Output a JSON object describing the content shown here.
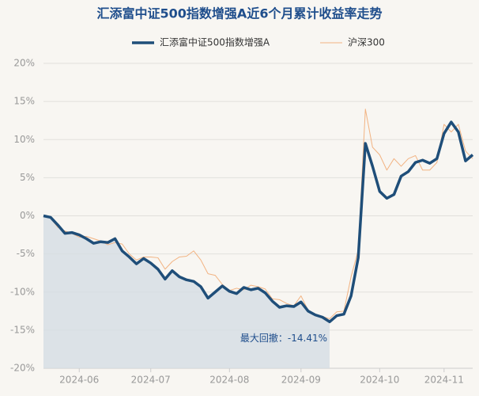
{
  "chart_data": {
    "type": "line",
    "title": "汇添富中证500指数增强A近6个月累计收益率走势",
    "annotation": "最大回撤：-14.41%",
    "categories": [
      null,
      null,
      null,
      null,
      null,
      "2024-06",
      null,
      null,
      null,
      null,
      null,
      null,
      null,
      null,
      null,
      "2024-07",
      null,
      null,
      null,
      null,
      null,
      null,
      null,
      null,
      null,
      null,
      "2024-08",
      null,
      null,
      null,
      null,
      null,
      null,
      null,
      null,
      null,
      "2024-09",
      null,
      null,
      null,
      null,
      null,
      null,
      null,
      null,
      null,
      null,
      "2024-10",
      null,
      null,
      null,
      null,
      null,
      null,
      null,
      null,
      "2024-11",
      null,
      null,
      null,
      null
    ],
    "series": [
      {
        "name": "汇添富中证500指数增强A",
        "color": "#1f4e79",
        "width": 3.5,
        "values": [
          0,
          -0.2,
          -1.2,
          -2.3,
          -2.2,
          -2.5,
          -3.0,
          -3.6,
          -3.4,
          -3.5,
          -3.0,
          -4.6,
          -5.4,
          -6.3,
          -5.6,
          -6.2,
          -7.0,
          -8.3,
          -7.2,
          -8.0,
          -8.4,
          -8.6,
          -9.3,
          -10.8,
          -10.0,
          -9.2,
          -9.9,
          -10.2,
          -9.4,
          -9.7,
          -9.5,
          -10.1,
          -11.2,
          -12.0,
          -11.8,
          -11.9,
          -11.3,
          -12.5,
          -13.0,
          -13.3,
          -13.9,
          -13.1,
          -12.9,
          -10.5,
          -5.5,
          9.5,
          6.5,
          3.2,
          2.3,
          2.8,
          5.2,
          5.8,
          7.0,
          7.3,
          6.9,
          7.5,
          10.8,
          12.3,
          11.0,
          7.2,
          8.0
        ]
      },
      {
        "name": "沪深300",
        "color": "#f2b382",
        "width": 1,
        "values": [
          0,
          -0.3,
          -1.5,
          -2.0,
          -2.3,
          -2.8,
          -2.7,
          -3.0,
          -3.3,
          -3.8,
          -3.5,
          -3.7,
          -5.0,
          -5.8,
          -5.4,
          -5.4,
          -5.5,
          -7.0,
          -6.0,
          -5.4,
          -5.3,
          -4.6,
          -5.8,
          -7.6,
          -7.8,
          -9.0,
          -9.8,
          -9.5,
          -9.7,
          -9.1,
          -9.3,
          -9.6,
          -10.9,
          -11.0,
          -11.5,
          -11.8,
          -10.5,
          -12.4,
          -12.9,
          -13.2,
          -13.5,
          -12.6,
          -12.5,
          -8.0,
          -4.5,
          14.0,
          9.0,
          8.0,
          6.0,
          7.5,
          6.5,
          7.5,
          7.9,
          6.0,
          6.0,
          7.0,
          12.0,
          11.0,
          12.0,
          8.5,
          7.5
        ]
      }
    ],
    "ylim": [
      -20,
      20
    ],
    "yticks": [
      {
        "value": -20,
        "label": "-20%"
      },
      {
        "value": -15,
        "label": "-15%"
      },
      {
        "value": -10,
        "label": "-10%"
      },
      {
        "value": -5,
        "label": "-5%"
      },
      {
        "value": 0,
        "label": "0%"
      },
      {
        "value": 5,
        "label": "5%"
      },
      {
        "value": 10,
        "label": "10%"
      },
      {
        "value": 15,
        "label": "15%"
      },
      {
        "value": 20,
        "label": "20%"
      }
    ],
    "grid": true,
    "drawdown_shade": true
  }
}
